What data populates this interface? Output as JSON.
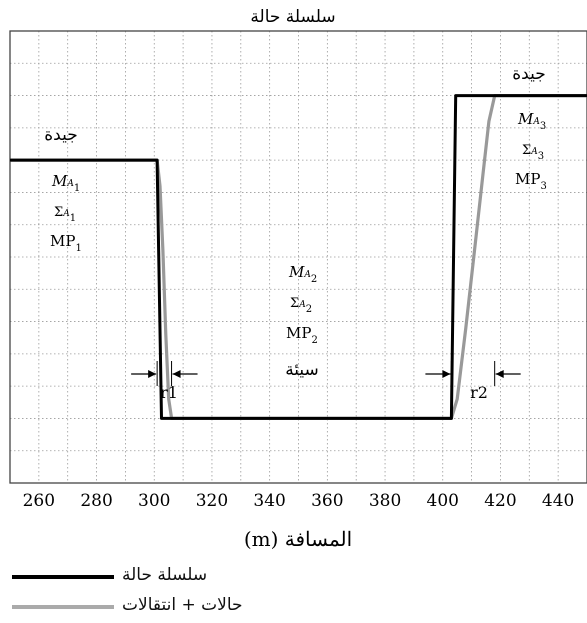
{
  "chart_data": {
    "type": "line",
    "title": "سلسلة حالة",
    "xlabel": "المسافة (m)",
    "ylabel": "",
    "xlim": [
      250,
      450
    ],
    "ylim": [
      0,
      7
    ],
    "grid": true,
    "x_ticks": [
      "260",
      "280",
      "300",
      "320",
      "340",
      "360",
      "380",
      "400",
      "420",
      "440"
    ],
    "x_tick_values": [
      260,
      280,
      300,
      320,
      340,
      360,
      380,
      400,
      420,
      440
    ],
    "series": [
      {
        "name": "سلسلة حالة",
        "color": "#000000",
        "x": [
          250,
          301,
          302.5,
          403,
          404.5,
          450
        ],
        "y": [
          5,
          5,
          1,
          1,
          6,
          6
        ]
      },
      {
        "name": "حالات + انتقالات",
        "color": "#999999",
        "x": [
          250,
          301,
          302,
          303,
          304,
          305,
          306,
          403,
          405,
          408,
          411,
          414,
          416,
          418,
          450
        ],
        "y": [
          5,
          5,
          4.6,
          3.6,
          2.3,
          1.3,
          1,
          1,
          1.3,
          2.4,
          3.6,
          4.8,
          5.6,
          6,
          6
        ]
      }
    ],
    "annotations": {
      "left_quality": "جيدة",
      "left_m": "M",
      "left_m_sub": "A",
      "left_m_subsub": "1",
      "left_sigma": "Σ",
      "left_sigma_sub": "A",
      "left_sigma_subsub": "1",
      "left_mp": "MP",
      "left_mp_sub": "1",
      "mid_quality": "سيئة",
      "mid_m": "M",
      "mid_m_sub": "A",
      "mid_m_subsub": "2",
      "mid_sigma": "Σ",
      "mid_sigma_sub": "A",
      "mid_sigma_subsub": "2",
      "mid_mp": "MP",
      "mid_mp_sub": "2",
      "right_quality": "جيدة",
      "right_m": "M",
      "right_m_sub": "A",
      "right_m_subsub": "3",
      "right_sigma": "Σ",
      "right_sigma_sub": "A",
      "right_sigma_subsub": "3",
      "right_mp": "MP",
      "right_mp_sub": "3",
      "r1": "r1",
      "r2": "r2"
    }
  },
  "legend": [
    {
      "label": "سلسلة حالة",
      "color": "#000000"
    },
    {
      "label": "حالات + انتقالات",
      "color": "#aaaaaa"
    }
  ]
}
